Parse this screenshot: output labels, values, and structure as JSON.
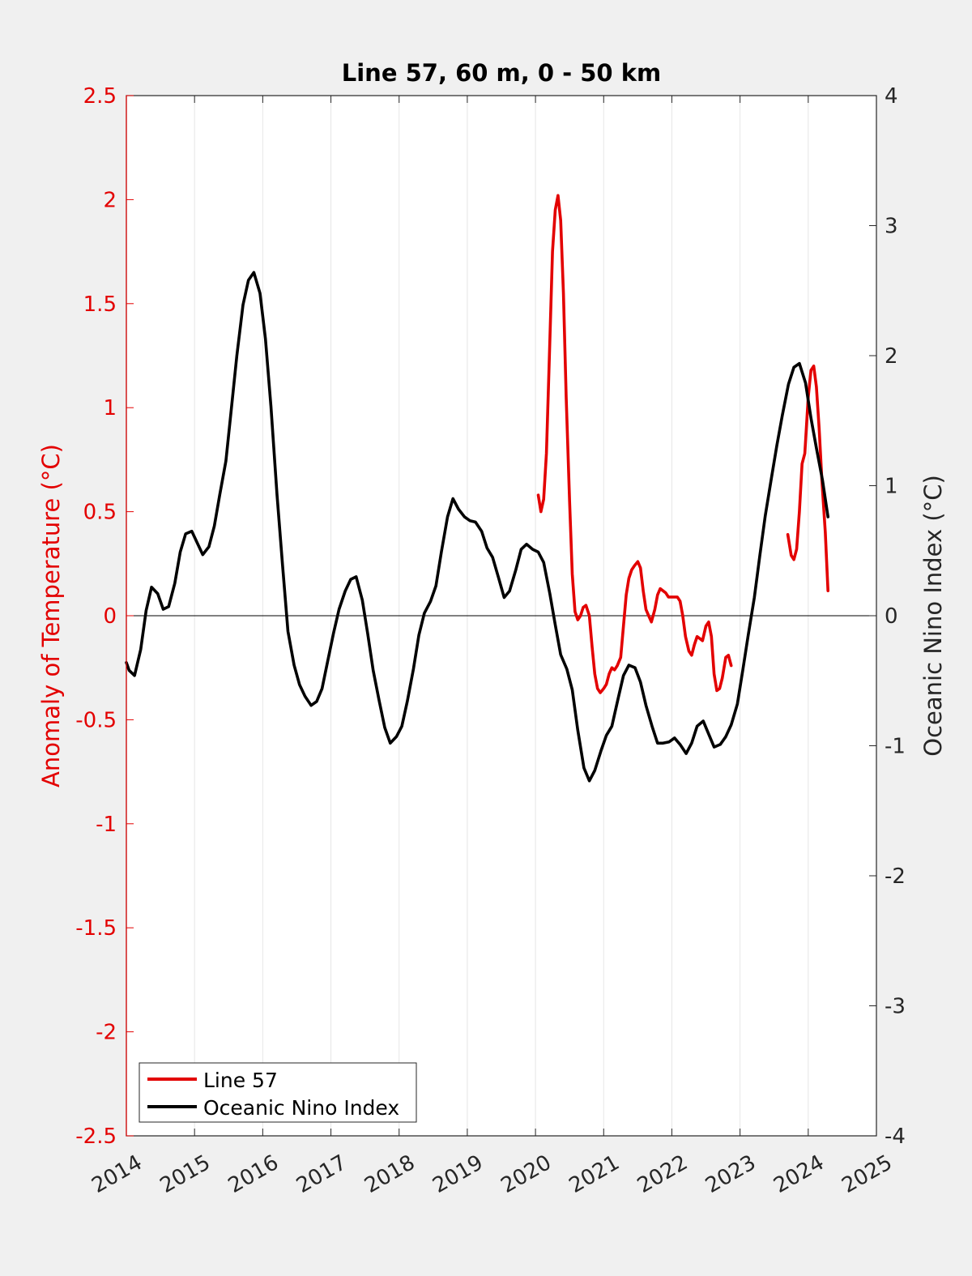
{
  "chart_data": {
    "type": "line",
    "title": "Line 57, 60 m, 0 - 50 km",
    "xlabel": "",
    "ylabel_left": "Anomaly of Temperature (°C)",
    "ylabel_right": "Oceanic Nino Index (°C)",
    "xlim": [
      2014,
      2025
    ],
    "ylim_left": [
      -2.5,
      2.5
    ],
    "ylim_right": [
      -4,
      4
    ],
    "x_ticks": [
      "2014",
      "2015",
      "2016",
      "2017",
      "2018",
      "2019",
      "2020",
      "2021",
      "2022",
      "2023",
      "2024",
      "2025"
    ],
    "y_left_ticks": [
      "-2.5",
      "-2",
      "-1.5",
      "-1",
      "-0.5",
      "0",
      "0.5",
      "1",
      "1.5",
      "2",
      "2.5"
    ],
    "y_right_ticks": [
      "-4",
      "-3",
      "-2",
      "-1",
      "0",
      "1",
      "2",
      "3",
      "4"
    ],
    "grid": "vertical",
    "legend_position": "bottom-left",
    "colors": {
      "line57": "#e30000",
      "oni": "#000000",
      "left_axis": "#e30000",
      "right_axis": "#262626"
    },
    "series": [
      {
        "name": "Line 57",
        "axis": "left",
        "segments": [
          [
            [
              2020.04,
              0.58
            ],
            [
              2020.08,
              0.5
            ],
            [
              2020.12,
              0.56
            ],
            [
              2020.16,
              0.78
            ],
            [
              2020.2,
              1.2
            ],
            [
              2020.25,
              1.75
            ],
            [
              2020.29,
              1.95
            ],
            [
              2020.33,
              2.02
            ],
            [
              2020.37,
              1.9
            ],
            [
              2020.41,
              1.55
            ],
            [
              2020.45,
              1.05
            ],
            [
              2020.5,
              0.55
            ],
            [
              2020.54,
              0.2
            ],
            [
              2020.58,
              0.02
            ],
            [
              2020.62,
              -0.02
            ],
            [
              2020.66,
              0.0
            ],
            [
              2020.7,
              0.04
            ],
            [
              2020.74,
              0.05
            ],
            [
              2020.79,
              0.0
            ],
            [
              2020.83,
              -0.15
            ],
            [
              2020.87,
              -0.28
            ],
            [
              2020.91,
              -0.35
            ],
            [
              2020.95,
              -0.37
            ],
            [
              2021.0,
              -0.35
            ],
            [
              2021.04,
              -0.33
            ],
            [
              2021.08,
              -0.28
            ],
            [
              2021.12,
              -0.25
            ],
            [
              2021.16,
              -0.26
            ],
            [
              2021.2,
              -0.24
            ],
            [
              2021.25,
              -0.2
            ],
            [
              2021.29,
              -0.05
            ],
            [
              2021.33,
              0.1
            ],
            [
              2021.37,
              0.18
            ],
            [
              2021.41,
              0.22
            ],
            [
              2021.45,
              0.24
            ],
            [
              2021.5,
              0.26
            ],
            [
              2021.54,
              0.23
            ],
            [
              2021.58,
              0.12
            ],
            [
              2021.62,
              0.03
            ],
            [
              2021.66,
              0.0
            ],
            [
              2021.7,
              -0.03
            ],
            [
              2021.75,
              0.03
            ],
            [
              2021.79,
              0.1
            ],
            [
              2021.83,
              0.13
            ],
            [
              2021.87,
              0.12
            ],
            [
              2021.91,
              0.11
            ],
            [
              2021.95,
              0.09
            ],
            [
              2022.0,
              0.09
            ],
            [
              2022.04,
              0.09
            ],
            [
              2022.08,
              0.09
            ],
            [
              2022.12,
              0.07
            ],
            [
              2022.16,
              0.0
            ],
            [
              2022.2,
              -0.1
            ],
            [
              2022.25,
              -0.17
            ],
            [
              2022.29,
              -0.19
            ],
            [
              2022.33,
              -0.14
            ],
            [
              2022.37,
              -0.1
            ],
            [
              2022.41,
              -0.11
            ],
            [
              2022.45,
              -0.12
            ],
            [
              2022.5,
              -0.05
            ],
            [
              2022.54,
              -0.03
            ],
            [
              2022.58,
              -0.1
            ],
            [
              2022.62,
              -0.28
            ],
            [
              2022.66,
              -0.36
            ],
            [
              2022.7,
              -0.35
            ],
            [
              2022.74,
              -0.3
            ],
            [
              2022.79,
              -0.2
            ],
            [
              2022.83,
              -0.19
            ],
            [
              2022.87,
              -0.24
            ]
          ],
          [
            [
              2023.7,
              0.39
            ],
            [
              2023.75,
              0.29
            ],
            [
              2023.79,
              0.27
            ],
            [
              2023.83,
              0.32
            ],
            [
              2023.87,
              0.5
            ],
            [
              2023.91,
              0.73
            ],
            [
              2023.95,
              0.78
            ],
            [
              2024.0,
              1.05
            ],
            [
              2024.04,
              1.18
            ],
            [
              2024.08,
              1.2
            ],
            [
              2024.12,
              1.1
            ],
            [
              2024.16,
              0.9
            ],
            [
              2024.2,
              0.65
            ],
            [
              2024.25,
              0.4
            ],
            [
              2024.29,
              0.12
            ]
          ]
        ]
      },
      {
        "name": "Oceanic Nino Index",
        "axis": "right",
        "x": [
          2014.0,
          2014.04,
          2014.12,
          2014.21,
          2014.29,
          2014.37,
          2014.46,
          2014.54,
          2014.62,
          2014.71,
          2014.79,
          2014.87,
          2014.96,
          2015.04,
          2015.12,
          2015.21,
          2015.29,
          2015.37,
          2015.46,
          2015.54,
          2015.62,
          2015.71,
          2015.79,
          2015.87,
          2015.96,
          2016.04,
          2016.12,
          2016.21,
          2016.29,
          2016.37,
          2016.46,
          2016.54,
          2016.62,
          2016.71,
          2016.79,
          2016.87,
          2016.96,
          2017.04,
          2017.12,
          2017.21,
          2017.29,
          2017.37,
          2017.46,
          2017.54,
          2017.62,
          2017.71,
          2017.79,
          2017.87,
          2017.96,
          2018.04,
          2018.12,
          2018.21,
          2018.29,
          2018.37,
          2018.46,
          2018.54,
          2018.62,
          2018.71,
          2018.79,
          2018.87,
          2018.96,
          2019.04,
          2019.12,
          2019.21,
          2019.29,
          2019.37,
          2019.46,
          2019.54,
          2019.62,
          2019.71,
          2019.79,
          2019.87,
          2019.96,
          2020.04,
          2020.12,
          2020.21,
          2020.29,
          2020.37,
          2020.46,
          2020.54,
          2020.62,
          2020.71,
          2020.79,
          2020.87,
          2020.96,
          2021.04,
          2021.12,
          2021.21,
          2021.29,
          2021.37,
          2021.46,
          2021.54,
          2021.62,
          2021.71,
          2021.79,
          2021.87,
          2021.96,
          2022.04,
          2022.12,
          2022.21,
          2022.29,
          2022.37,
          2022.46,
          2022.54,
          2022.62,
          2022.71,
          2022.79,
          2022.87,
          2022.96,
          2023.04,
          2023.12,
          2023.21,
          2023.29,
          2023.37,
          2023.46,
          2023.54,
          2023.62,
          2023.71,
          2023.79,
          2023.87,
          2023.96,
          2024.04,
          2024.12,
          2024.21,
          2024.29
        ],
        "values": [
          -0.36,
          -0.42,
          -0.46,
          -0.26,
          0.04,
          0.22,
          0.17,
          0.05,
          0.07,
          0.25,
          0.49,
          0.63,
          0.65,
          0.56,
          0.47,
          0.53,
          0.69,
          0.93,
          1.19,
          1.59,
          2.0,
          2.39,
          2.58,
          2.64,
          2.48,
          2.13,
          1.61,
          0.93,
          0.39,
          -0.12,
          -0.38,
          -0.53,
          -0.62,
          -0.69,
          -0.66,
          -0.56,
          -0.33,
          -0.13,
          0.05,
          0.19,
          0.28,
          0.3,
          0.12,
          -0.14,
          -0.42,
          -0.66,
          -0.86,
          -0.98,
          -0.93,
          -0.85,
          -0.66,
          -0.41,
          -0.15,
          0.02,
          0.11,
          0.23,
          0.49,
          0.76,
          0.9,
          0.82,
          0.76,
          0.73,
          0.72,
          0.65,
          0.52,
          0.45,
          0.29,
          0.14,
          0.19,
          0.35,
          0.51,
          0.55,
          0.51,
          0.49,
          0.41,
          0.17,
          -0.07,
          -0.3,
          -0.41,
          -0.57,
          -0.88,
          -1.17,
          -1.27,
          -1.19,
          -1.04,
          -0.92,
          -0.85,
          -0.64,
          -0.46,
          -0.38,
          -0.4,
          -0.51,
          -0.69,
          -0.85,
          -0.98,
          -0.98,
          -0.97,
          -0.94,
          -0.99,
          -1.06,
          -0.98,
          -0.85,
          -0.81,
          -0.91,
          -1.01,
          -0.99,
          -0.93,
          -0.84,
          -0.68,
          -0.42,
          -0.15,
          0.14,
          0.46,
          0.77,
          1.06,
          1.31,
          1.54,
          1.78,
          1.91,
          1.94,
          1.79,
          1.52,
          1.29,
          1.04,
          0.76
        ]
      }
    ]
  }
}
